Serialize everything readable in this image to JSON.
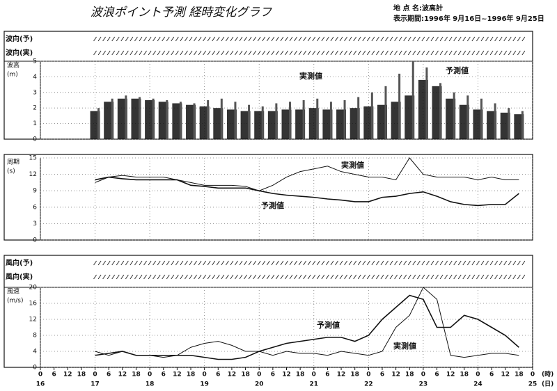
{
  "header": {
    "title": "波浪ポイント予測 経時変化グラフ",
    "location": "地 点 名:波高計",
    "period": "表示期間:1996年 9月16日~1996年 9月25日"
  },
  "chart_data": [
    {
      "type": "bar",
      "direction_rows": [
        "波向(予)",
        "波向(実)"
      ],
      "ylabel": [
        "波高",
        "(m)"
      ],
      "x": [
        24,
        30,
        36,
        42,
        48,
        54,
        60,
        66,
        72,
        78,
        84,
        90,
        96,
        102,
        108,
        114,
        120,
        126,
        132,
        138,
        144,
        150,
        156,
        162,
        168,
        174,
        180,
        186,
        192,
        198,
        204,
        210
      ],
      "series": [
        {
          "name": "実測値",
          "color": "#111111",
          "values": [
            1.8,
            2.4,
            2.6,
            2.6,
            2.5,
            2.4,
            2.3,
            2.2,
            2.1,
            2.0,
            1.9,
            1.8,
            1.8,
            1.8,
            1.9,
            1.9,
            2.0,
            1.9,
            1.9,
            2.0,
            2.1,
            2.2,
            2.4,
            2.8,
            3.8,
            3.4,
            2.6,
            2.2,
            1.9,
            1.8,
            1.7,
            1.6
          ]
        },
        {
          "name": "予測値",
          "color": "#555555",
          "values": [
            2.0,
            2.6,
            2.8,
            2.7,
            2.6,
            2.5,
            2.4,
            2.3,
            2.5,
            2.6,
            2.4,
            2.2,
            2.1,
            2.3,
            2.4,
            2.5,
            2.6,
            2.4,
            2.5,
            2.7,
            3.0,
            3.4,
            4.2,
            5.0,
            4.6,
            3.6,
            3.0,
            2.8,
            2.6,
            2.3,
            2.0,
            1.8
          ]
        }
      ],
      "xlim": [
        0,
        216
      ],
      "ylim": [
        0,
        5
      ],
      "yticks": [
        0,
        1,
        2,
        3,
        4,
        5
      ],
      "grid": true
    },
    {
      "type": "line",
      "ylabel": [
        "周期",
        "(s)"
      ],
      "x": [
        24,
        30,
        36,
        42,
        48,
        54,
        60,
        66,
        72,
        78,
        84,
        90,
        96,
        102,
        108,
        114,
        120,
        126,
        132,
        138,
        144,
        150,
        156,
        162,
        168,
        174,
        180,
        186,
        192,
        198,
        204,
        210
      ],
      "series": [
        {
          "name": "実測値",
          "color": "#111111",
          "values": [
            10.5,
            11.5,
            11.8,
            11.5,
            11.5,
            11.5,
            11,
            10.5,
            10,
            10,
            10,
            9.8,
            9,
            10,
            11.5,
            12.5,
            13,
            13.5,
            12.5,
            12,
            11.5,
            11.5,
            11,
            15,
            12,
            11.5,
            11.5,
            11.5,
            11,
            11.5,
            11,
            11
          ]
        },
        {
          "name": "予測値",
          "color": "#111111",
          "values": [
            11,
            11.5,
            11.2,
            11,
            11,
            11,
            11,
            10,
            9.8,
            9.5,
            9.5,
            9.5,
            9,
            8.5,
            8.2,
            8,
            7.8,
            7.5,
            7.3,
            7,
            7,
            7.8,
            8,
            8.5,
            8.8,
            8,
            7,
            6.5,
            6.3,
            6.5,
            6.5,
            8.5
          ]
        }
      ],
      "xlim": [
        0,
        216
      ],
      "ylim": [
        0,
        15
      ],
      "yticks": [
        0,
        3,
        6,
        9,
        12,
        15
      ],
      "grid": true
    },
    {
      "type": "line",
      "direction_rows": [
        "風向(予)",
        "風向(実)"
      ],
      "ylabel": [
        "風速",
        "(m/s)"
      ],
      "x": [
        24,
        30,
        36,
        42,
        48,
        54,
        60,
        66,
        72,
        78,
        84,
        90,
        96,
        102,
        108,
        114,
        120,
        126,
        132,
        138,
        144,
        150,
        156,
        162,
        168,
        174,
        180,
        186,
        192,
        198,
        204,
        210
      ],
      "series": [
        {
          "name": "実測値",
          "color": "#111111",
          "values": [
            4,
            3,
            4,
            3,
            3,
            2.5,
            3,
            5,
            6,
            6.5,
            5.5,
            4,
            4,
            3,
            4,
            3.5,
            3.5,
            3,
            4,
            3.5,
            3,
            4,
            10,
            13,
            20,
            17,
            3,
            2.5,
            3,
            3.5,
            3.5,
            3
          ]
        },
        {
          "name": "予測値",
          "color": "#111111",
          "values": [
            3,
            3.5,
            4,
            3,
            3,
            3,
            3,
            3,
            2.5,
            2,
            2,
            2.5,
            4,
            5,
            6,
            6.5,
            7,
            7.5,
            7.5,
            6.5,
            8,
            12,
            15,
            18,
            17,
            10,
            10,
            13,
            12,
            10,
            8,
            5
          ]
        }
      ],
      "xlim": [
        0,
        216
      ],
      "ylim": [
        0,
        20
      ],
      "yticks": [
        0,
        4,
        8,
        12,
        16,
        20
      ],
      "grid": true,
      "xticks": [
        0,
        6,
        12,
        18,
        {
          "value": 24,
          "label": "0"
        },
        {
          "value": 30,
          "label": "6"
        },
        {
          "value": 36,
          "label": "12"
        },
        {
          "value": 42,
          "label": "18"
        },
        {
          "value": 48,
          "label": "0"
        },
        {
          "value": 54,
          "label": "6"
        },
        {
          "value": 60,
          "label": "12"
        },
        {
          "value": 66,
          "label": "18"
        },
        {
          "value": 72,
          "label": "0"
        },
        {
          "value": 78,
          "label": "6"
        },
        {
          "value": 84,
          "label": "12"
        },
        {
          "value": 90,
          "label": "18"
        },
        {
          "value": 96,
          "label": "0"
        },
        {
          "value": 102,
          "label": "6"
        },
        {
          "value": 108,
          "label": "12"
        },
        {
          "value": 114,
          "label": "18"
        },
        {
          "value": 120,
          "label": "0"
        },
        {
          "value": 126,
          "label": "6"
        },
        {
          "value": 132,
          "label": "12"
        },
        {
          "value": 138,
          "label": "18"
        },
        {
          "value": 144,
          "label": "0"
        },
        {
          "value": 150,
          "label": "6"
        },
        {
          "value": 156,
          "label": "12"
        },
        {
          "value": 162,
          "label": "18"
        },
        {
          "value": 168,
          "label": "0"
        },
        {
          "value": 174,
          "label": "6"
        },
        {
          "value": 180,
          "label": "12"
        },
        {
          "value": 186,
          "label": "18"
        },
        {
          "value": 192,
          "label": "0"
        },
        {
          "value": 198,
          "label": "6"
        },
        {
          "value": 204,
          "label": "12"
        },
        {
          "value": 210,
          "label": "18"
        },
        {
          "value": 216,
          "label": "0"
        }
      ],
      "day_ticks": [
        {
          "value": 0,
          "label": "16"
        },
        {
          "value": 24,
          "label": "17"
        },
        {
          "value": 48,
          "label": "18"
        },
        {
          "value": 72,
          "label": "19"
        },
        {
          "value": 96,
          "label": "20"
        },
        {
          "value": 120,
          "label": "21"
        },
        {
          "value": 144,
          "label": "22"
        },
        {
          "value": 168,
          "label": "23"
        },
        {
          "value": 192,
          "label": "24"
        },
        {
          "value": 216,
          "label": "25"
        }
      ],
      "xunit": "(時)",
      "dayunit": "(日)"
    }
  ]
}
